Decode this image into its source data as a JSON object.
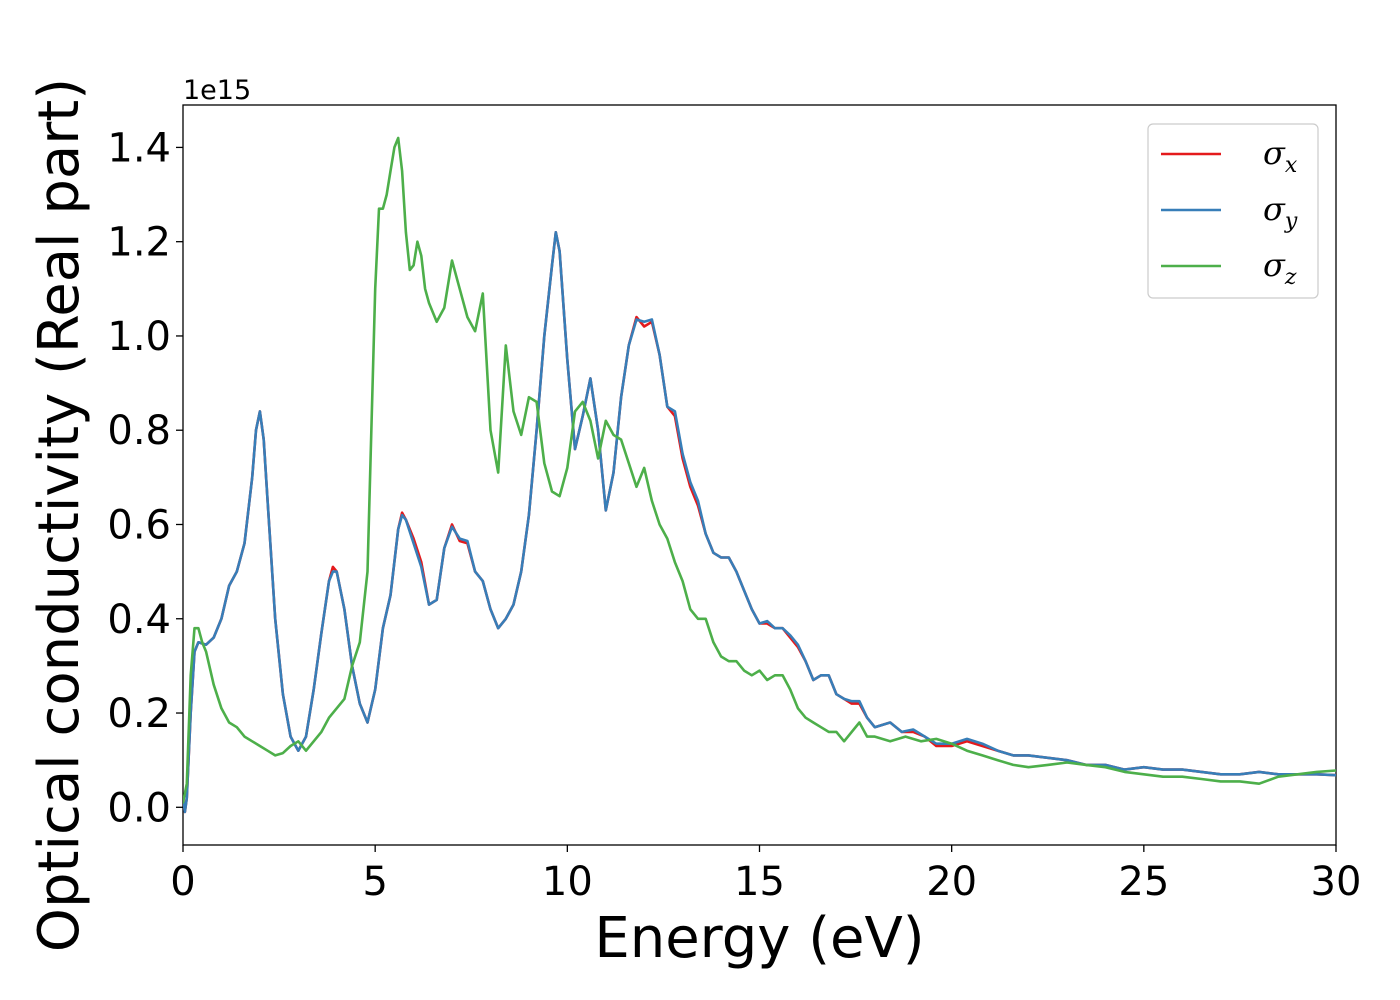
{
  "chart_data": {
    "type": "line",
    "title": "",
    "xlabel": "Energy (eV)",
    "ylabel": "Optical conductivity (Real part)",
    "y_offset_label": "1e15",
    "xlim": [
      0,
      30
    ],
    "ylim": [
      -0.08,
      1.49
    ],
    "x_ticks": [
      0,
      5,
      10,
      15,
      20,
      25,
      30
    ],
    "x_tick_labels": [
      "0",
      "5",
      "10",
      "15",
      "20",
      "25",
      "30"
    ],
    "y_ticks": [
      0.0,
      0.2,
      0.4,
      0.6,
      0.8,
      1.0,
      1.2,
      1.4
    ],
    "y_tick_labels": [
      "0.0",
      "0.2",
      "0.4",
      "0.6",
      "0.8",
      "1.0",
      "1.2",
      "1.4"
    ],
    "grid": false,
    "legend_position": "top-right",
    "series": [
      {
        "name": "σx",
        "symbol": "σ",
        "subscript": "x",
        "color": "#e41a1c",
        "x": [
          0,
          0.05,
          0.1,
          0.2,
          0.3,
          0.4,
          0.6,
          0.8,
          1.0,
          1.2,
          1.4,
          1.6,
          1.8,
          1.9,
          2.0,
          2.1,
          2.2,
          2.4,
          2.6,
          2.8,
          3.0,
          3.2,
          3.4,
          3.6,
          3.8,
          3.9,
          4.0,
          4.2,
          4.4,
          4.6,
          4.8,
          5.0,
          5.2,
          5.4,
          5.6,
          5.7,
          5.8,
          6.0,
          6.2,
          6.4,
          6.6,
          6.8,
          7.0,
          7.2,
          7.4,
          7.6,
          7.8,
          8.0,
          8.2,
          8.4,
          8.6,
          8.8,
          9.0,
          9.2,
          9.4,
          9.6,
          9.7,
          9.8,
          10.0,
          10.2,
          10.4,
          10.6,
          10.8,
          11.0,
          11.2,
          11.4,
          11.6,
          11.8,
          12.0,
          12.2,
          12.4,
          12.6,
          12.8,
          13.0,
          13.2,
          13.4,
          13.6,
          13.8,
          14.0,
          14.2,
          14.4,
          14.6,
          14.8,
          15.0,
          15.2,
          15.4,
          15.6,
          15.8,
          16.0,
          16.2,
          16.4,
          16.6,
          16.8,
          17.0,
          17.2,
          17.4,
          17.6,
          17.8,
          18.0,
          18.4,
          18.7,
          19.0,
          19.3,
          19.6,
          20.0,
          20.4,
          20.8,
          21.2,
          21.6,
          22.0,
          22.5,
          23.0,
          23.5,
          24.0,
          24.5,
          25.0,
          25.5,
          26.0,
          26.5,
          27.0,
          27.5,
          28.0,
          28.5,
          29.0,
          29.5,
          30.0
        ],
        "y": [
          0.02,
          -0.01,
          0.02,
          0.2,
          0.33,
          0.35,
          0.345,
          0.36,
          0.4,
          0.47,
          0.5,
          0.56,
          0.7,
          0.8,
          0.84,
          0.78,
          0.65,
          0.4,
          0.24,
          0.15,
          0.12,
          0.15,
          0.25,
          0.37,
          0.48,
          0.51,
          0.5,
          0.42,
          0.3,
          0.22,
          0.18,
          0.25,
          0.38,
          0.45,
          0.59,
          0.625,
          0.61,
          0.57,
          0.52,
          0.43,
          0.44,
          0.55,
          0.6,
          0.565,
          0.56,
          0.5,
          0.48,
          0.42,
          0.38,
          0.4,
          0.43,
          0.5,
          0.62,
          0.8,
          1.0,
          1.15,
          1.22,
          1.18,
          0.95,
          0.76,
          0.83,
          0.91,
          0.8,
          0.63,
          0.71,
          0.87,
          0.98,
          1.04,
          1.02,
          1.03,
          0.96,
          0.85,
          0.83,
          0.74,
          0.68,
          0.64,
          0.58,
          0.54,
          0.53,
          0.53,
          0.5,
          0.46,
          0.42,
          0.39,
          0.39,
          0.38,
          0.38,
          0.36,
          0.34,
          0.31,
          0.27,
          0.28,
          0.28,
          0.24,
          0.23,
          0.22,
          0.22,
          0.19,
          0.17,
          0.18,
          0.16,
          0.16,
          0.15,
          0.13,
          0.13,
          0.14,
          0.13,
          0.12,
          0.11,
          0.11,
          0.105,
          0.1,
          0.09,
          0.09,
          0.08,
          0.085,
          0.08,
          0.08,
          0.075,
          0.07,
          0.07,
          0.075,
          0.07,
          0.07,
          0.07,
          0.068
        ]
      },
      {
        "name": "σy",
        "symbol": "σ",
        "subscript": "y",
        "color": "#377eb8",
        "x": [
          0,
          0.05,
          0.1,
          0.2,
          0.3,
          0.4,
          0.6,
          0.8,
          1.0,
          1.2,
          1.4,
          1.6,
          1.8,
          1.9,
          2.0,
          2.1,
          2.2,
          2.4,
          2.6,
          2.8,
          3.0,
          3.2,
          3.4,
          3.6,
          3.8,
          3.9,
          4.0,
          4.2,
          4.4,
          4.6,
          4.8,
          5.0,
          5.2,
          5.4,
          5.6,
          5.7,
          5.8,
          6.0,
          6.2,
          6.4,
          6.6,
          6.8,
          7.0,
          7.2,
          7.4,
          7.6,
          7.8,
          8.0,
          8.2,
          8.4,
          8.6,
          8.8,
          9.0,
          9.2,
          9.4,
          9.6,
          9.7,
          9.8,
          10.0,
          10.2,
          10.4,
          10.6,
          10.8,
          11.0,
          11.2,
          11.4,
          11.6,
          11.8,
          12.0,
          12.2,
          12.4,
          12.6,
          12.8,
          13.0,
          13.2,
          13.4,
          13.6,
          13.8,
          14.0,
          14.2,
          14.4,
          14.6,
          14.8,
          15.0,
          15.2,
          15.4,
          15.6,
          15.8,
          16.0,
          16.2,
          16.4,
          16.6,
          16.8,
          17.0,
          17.2,
          17.4,
          17.6,
          17.8,
          18.0,
          18.4,
          18.7,
          19.0,
          19.3,
          19.6,
          20.0,
          20.4,
          20.8,
          21.2,
          21.6,
          22.0,
          22.5,
          23.0,
          23.5,
          24.0,
          24.5,
          25.0,
          25.5,
          26.0,
          26.5,
          27.0,
          27.5,
          28.0,
          28.5,
          29.0,
          29.5,
          30.0
        ],
        "y": [
          0.02,
          -0.01,
          0.02,
          0.2,
          0.33,
          0.35,
          0.345,
          0.36,
          0.4,
          0.47,
          0.5,
          0.56,
          0.7,
          0.8,
          0.84,
          0.78,
          0.65,
          0.4,
          0.24,
          0.15,
          0.12,
          0.15,
          0.25,
          0.37,
          0.48,
          0.5,
          0.5,
          0.42,
          0.3,
          0.22,
          0.18,
          0.25,
          0.38,
          0.45,
          0.59,
          0.62,
          0.61,
          0.56,
          0.51,
          0.43,
          0.44,
          0.55,
          0.595,
          0.57,
          0.565,
          0.5,
          0.48,
          0.42,
          0.38,
          0.4,
          0.43,
          0.5,
          0.62,
          0.8,
          1.0,
          1.15,
          1.22,
          1.18,
          0.95,
          0.76,
          0.83,
          0.91,
          0.8,
          0.63,
          0.71,
          0.87,
          0.98,
          1.035,
          1.03,
          1.035,
          0.96,
          0.85,
          0.84,
          0.75,
          0.69,
          0.65,
          0.58,
          0.54,
          0.53,
          0.53,
          0.5,
          0.46,
          0.42,
          0.39,
          0.395,
          0.38,
          0.38,
          0.365,
          0.345,
          0.31,
          0.27,
          0.28,
          0.28,
          0.24,
          0.23,
          0.225,
          0.225,
          0.19,
          0.17,
          0.18,
          0.16,
          0.165,
          0.15,
          0.135,
          0.135,
          0.145,
          0.135,
          0.12,
          0.11,
          0.11,
          0.105,
          0.1,
          0.09,
          0.09,
          0.08,
          0.085,
          0.08,
          0.08,
          0.075,
          0.07,
          0.07,
          0.075,
          0.07,
          0.07,
          0.07,
          0.068
        ]
      },
      {
        "name": "σz",
        "symbol": "σ",
        "subscript": "z",
        "color": "#4daf4a",
        "x": [
          0,
          0.1,
          0.2,
          0.3,
          0.4,
          0.5,
          0.6,
          0.8,
          1.0,
          1.2,
          1.4,
          1.6,
          1.8,
          2.0,
          2.2,
          2.4,
          2.6,
          2.8,
          3.0,
          3.2,
          3.4,
          3.6,
          3.8,
          4.0,
          4.2,
          4.4,
          4.6,
          4.8,
          5.0,
          5.1,
          5.2,
          5.3,
          5.4,
          5.5,
          5.6,
          5.7,
          5.8,
          5.9,
          6.0,
          6.1,
          6.2,
          6.3,
          6.4,
          6.6,
          6.8,
          7.0,
          7.2,
          7.4,
          7.6,
          7.8,
          8.0,
          8.2,
          8.4,
          8.6,
          8.8,
          9.0,
          9.2,
          9.4,
          9.6,
          9.8,
          10.0,
          10.2,
          10.4,
          10.6,
          10.8,
          11.0,
          11.2,
          11.4,
          11.6,
          11.8,
          12.0,
          12.2,
          12.4,
          12.6,
          12.8,
          13.0,
          13.2,
          13.4,
          13.6,
          13.8,
          14.0,
          14.2,
          14.4,
          14.6,
          14.8,
          15.0,
          15.2,
          15.4,
          15.6,
          15.8,
          16.0,
          16.2,
          16.4,
          16.6,
          16.8,
          17.0,
          17.2,
          17.4,
          17.6,
          17.8,
          18.0,
          18.4,
          18.8,
          19.2,
          19.6,
          20.0,
          20.4,
          20.8,
          21.2,
          21.6,
          22.0,
          22.5,
          23.0,
          23.5,
          24.0,
          24.5,
          25.0,
          25.5,
          26.0,
          26.5,
          27.0,
          27.5,
          28.0,
          28.5,
          29.0,
          29.5,
          30.0
        ],
        "y": [
          0.01,
          0.05,
          0.28,
          0.38,
          0.38,
          0.35,
          0.33,
          0.26,
          0.21,
          0.18,
          0.17,
          0.15,
          0.14,
          0.13,
          0.12,
          0.11,
          0.115,
          0.13,
          0.14,
          0.12,
          0.14,
          0.16,
          0.19,
          0.21,
          0.23,
          0.3,
          0.35,
          0.5,
          1.1,
          1.27,
          1.27,
          1.3,
          1.35,
          1.4,
          1.42,
          1.35,
          1.22,
          1.14,
          1.15,
          1.2,
          1.17,
          1.1,
          1.07,
          1.03,
          1.06,
          1.16,
          1.1,
          1.04,
          1.01,
          1.09,
          0.8,
          0.71,
          0.98,
          0.84,
          0.79,
          0.87,
          0.86,
          0.73,
          0.67,
          0.66,
          0.72,
          0.84,
          0.86,
          0.82,
          0.74,
          0.82,
          0.79,
          0.78,
          0.73,
          0.68,
          0.72,
          0.65,
          0.6,
          0.57,
          0.52,
          0.48,
          0.42,
          0.4,
          0.4,
          0.35,
          0.32,
          0.31,
          0.31,
          0.29,
          0.28,
          0.29,
          0.27,
          0.28,
          0.28,
          0.25,
          0.21,
          0.19,
          0.18,
          0.17,
          0.16,
          0.16,
          0.14,
          0.16,
          0.18,
          0.15,
          0.15,
          0.14,
          0.15,
          0.14,
          0.145,
          0.135,
          0.12,
          0.11,
          0.1,
          0.09,
          0.085,
          0.09,
          0.095,
          0.09,
          0.085,
          0.075,
          0.07,
          0.065,
          0.065,
          0.06,
          0.055,
          0.055,
          0.05,
          0.065,
          0.07,
          0.075,
          0.078
        ]
      }
    ]
  }
}
